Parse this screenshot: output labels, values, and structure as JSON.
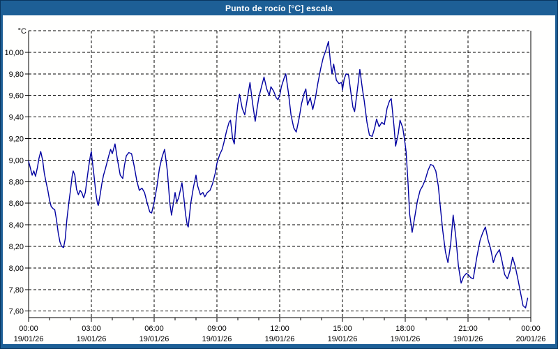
{
  "window": {
    "title": "Punto de rocío [°C] escala"
  },
  "colors": {
    "titlebar": "#1d5f96",
    "frame_outer": "#09365f",
    "plot_background": "#fffffe",
    "line": "#0000a0",
    "grid": "#000000"
  },
  "chart_data": {
    "type": "line",
    "title": "Punto de rocío [°C] escala",
    "xlabel": "",
    "ylabel": "°C",
    "legend": "none",
    "grid": "dashed",
    "ylim": [
      7.54,
      10.2
    ],
    "xlim_hours": [
      0,
      24
    ],
    "y_axis": {
      "unit": "°C",
      "ticks": [
        {
          "value": 10.0,
          "label": "10,00"
        },
        {
          "value": 9.8,
          "label": "9,80"
        },
        {
          "value": 9.6,
          "label": "9,60"
        },
        {
          "value": 9.4,
          "label": "9,40"
        },
        {
          "value": 9.2,
          "label": "9,20"
        },
        {
          "value": 9.0,
          "label": "9,00"
        },
        {
          "value": 8.8,
          "label": "8,80"
        },
        {
          "value": 8.6,
          "label": "8,60"
        },
        {
          "value": 8.4,
          "label": "8,40"
        },
        {
          "value": 8.2,
          "label": "8,20"
        },
        {
          "value": 8.0,
          "label": "8,00"
        },
        {
          "value": 7.8,
          "label": "7,80"
        },
        {
          "value": 7.6,
          "label": "7,60"
        }
      ]
    },
    "x_axis": {
      "minor_step_hours": 1,
      "ticks": [
        {
          "hour": 0,
          "time": "00:00",
          "date": "19/01/26"
        },
        {
          "hour": 3,
          "time": "03:00",
          "date": "19/01/26"
        },
        {
          "hour": 6,
          "time": "06:00",
          "date": "19/01/26"
        },
        {
          "hour": 9,
          "time": "09:00",
          "date": "19/01/26"
        },
        {
          "hour": 12,
          "time": "12:00",
          "date": "19/01/26"
        },
        {
          "hour": 15,
          "time": "15:00",
          "date": "19/01/26"
        },
        {
          "hour": 18,
          "time": "18:00",
          "date": "19/01/26"
        },
        {
          "hour": 21,
          "time": "21:00",
          "date": "19/01/26"
        },
        {
          "hour": 24,
          "time": "00:00",
          "date": "20/01/26"
        }
      ]
    },
    "series": [
      {
        "name": "Punto de rocío",
        "color": "#0000a0",
        "points": [
          [
            0.0,
            8.99
          ],
          [
            0.08,
            8.93
          ],
          [
            0.17,
            8.86
          ],
          [
            0.25,
            8.9
          ],
          [
            0.33,
            8.85
          ],
          [
            0.42,
            8.93
          ],
          [
            0.5,
            9.02
          ],
          [
            0.58,
            9.08
          ],
          [
            0.67,
            9.0
          ],
          [
            0.75,
            8.88
          ],
          [
            0.83,
            8.8
          ],
          [
            0.92,
            8.72
          ],
          [
            1.0,
            8.63
          ],
          [
            1.08,
            8.57
          ],
          [
            1.17,
            8.55
          ],
          [
            1.25,
            8.54
          ],
          [
            1.33,
            8.45
          ],
          [
            1.42,
            8.32
          ],
          [
            1.5,
            8.24
          ],
          [
            1.58,
            8.2
          ],
          [
            1.67,
            8.19
          ],
          [
            1.75,
            8.27
          ],
          [
            1.83,
            8.45
          ],
          [
            1.92,
            8.6
          ],
          [
            2.0,
            8.72
          ],
          [
            2.08,
            8.85
          ],
          [
            2.13,
            8.9
          ],
          [
            2.21,
            8.86
          ],
          [
            2.29,
            8.73
          ],
          [
            2.38,
            8.68
          ],
          [
            2.46,
            8.72
          ],
          [
            2.54,
            8.7
          ],
          [
            2.63,
            8.65
          ],
          [
            2.71,
            8.7
          ],
          [
            2.79,
            8.82
          ],
          [
            2.88,
            8.95
          ],
          [
            2.96,
            9.05
          ],
          [
            3.0,
            9.08
          ],
          [
            3.04,
            9.0
          ],
          [
            3.13,
            8.85
          ],
          [
            3.21,
            8.7
          ],
          [
            3.29,
            8.6
          ],
          [
            3.33,
            8.58
          ],
          [
            3.42,
            8.68
          ],
          [
            3.5,
            8.78
          ],
          [
            3.58,
            8.86
          ],
          [
            3.67,
            8.92
          ],
          [
            3.75,
            8.98
          ],
          [
            3.83,
            9.04
          ],
          [
            3.92,
            9.1
          ],
          [
            4.0,
            9.06
          ],
          [
            4.13,
            9.15
          ],
          [
            4.25,
            9.0
          ],
          [
            4.38,
            8.86
          ],
          [
            4.5,
            8.83
          ],
          [
            4.58,
            8.95
          ],
          [
            4.67,
            9.04
          ],
          [
            4.79,
            9.07
          ],
          [
            4.92,
            9.06
          ],
          [
            5.04,
            8.95
          ],
          [
            5.17,
            8.81
          ],
          [
            5.29,
            8.72
          ],
          [
            5.42,
            8.74
          ],
          [
            5.54,
            8.7
          ],
          [
            5.67,
            8.6
          ],
          [
            5.79,
            8.52
          ],
          [
            5.88,
            8.51
          ],
          [
            6.0,
            8.61
          ],
          [
            6.13,
            8.75
          ],
          [
            6.25,
            8.92
          ],
          [
            6.38,
            9.03
          ],
          [
            6.5,
            9.1
          ],
          [
            6.63,
            8.9
          ],
          [
            6.75,
            8.6
          ],
          [
            6.83,
            8.49
          ],
          [
            6.92,
            8.6
          ],
          [
            7.0,
            8.7
          ],
          [
            7.08,
            8.61
          ],
          [
            7.17,
            8.65
          ],
          [
            7.25,
            8.72
          ],
          [
            7.33,
            8.79
          ],
          [
            7.42,
            8.65
          ],
          [
            7.5,
            8.5
          ],
          [
            7.58,
            8.4
          ],
          [
            7.63,
            8.38
          ],
          [
            7.75,
            8.6
          ],
          [
            7.88,
            8.75
          ],
          [
            8.0,
            8.86
          ],
          [
            8.08,
            8.76
          ],
          [
            8.21,
            8.68
          ],
          [
            8.33,
            8.7
          ],
          [
            8.42,
            8.66
          ],
          [
            8.54,
            8.7
          ],
          [
            8.67,
            8.72
          ],
          [
            8.79,
            8.78
          ],
          [
            8.92,
            8.88
          ],
          [
            9.0,
            8.97
          ],
          [
            9.13,
            9.05
          ],
          [
            9.25,
            9.1
          ],
          [
            9.33,
            9.16
          ],
          [
            9.46,
            9.27
          ],
          [
            9.58,
            9.35
          ],
          [
            9.65,
            9.37
          ],
          [
            9.75,
            9.2
          ],
          [
            9.83,
            9.15
          ],
          [
            9.92,
            9.38
          ],
          [
            10.0,
            9.52
          ],
          [
            10.08,
            9.61
          ],
          [
            10.21,
            9.48
          ],
          [
            10.33,
            9.42
          ],
          [
            10.46,
            9.58
          ],
          [
            10.58,
            9.72
          ],
          [
            10.71,
            9.52
          ],
          [
            10.83,
            9.36
          ],
          [
            10.92,
            9.48
          ],
          [
            11.0,
            9.58
          ],
          [
            11.13,
            9.68
          ],
          [
            11.25,
            9.77
          ],
          [
            11.38,
            9.66
          ],
          [
            11.5,
            9.6
          ],
          [
            11.58,
            9.68
          ],
          [
            11.71,
            9.64
          ],
          [
            11.83,
            9.58
          ],
          [
            11.92,
            9.56
          ],
          [
            12.0,
            9.6
          ],
          [
            12.08,
            9.68
          ],
          [
            12.21,
            9.76
          ],
          [
            12.29,
            9.8
          ],
          [
            12.42,
            9.62
          ],
          [
            12.54,
            9.42
          ],
          [
            12.67,
            9.3
          ],
          [
            12.79,
            9.26
          ],
          [
            12.92,
            9.38
          ],
          [
            13.04,
            9.52
          ],
          [
            13.17,
            9.62
          ],
          [
            13.25,
            9.66
          ],
          [
            13.33,
            9.51
          ],
          [
            13.46,
            9.58
          ],
          [
            13.58,
            9.47
          ],
          [
            13.71,
            9.58
          ],
          [
            13.83,
            9.72
          ],
          [
            13.96,
            9.85
          ],
          [
            14.08,
            9.95
          ],
          [
            14.21,
            10.02
          ],
          [
            14.33,
            10.1
          ],
          [
            14.42,
            9.92
          ],
          [
            14.5,
            9.8
          ],
          [
            14.58,
            9.89
          ],
          [
            14.71,
            9.74
          ],
          [
            14.83,
            9.71
          ],
          [
            14.96,
            9.72
          ],
          [
            15.0,
            9.65
          ],
          [
            15.08,
            9.75
          ],
          [
            15.17,
            9.8
          ],
          [
            15.29,
            9.79
          ],
          [
            15.42,
            9.6
          ],
          [
            15.5,
            9.49
          ],
          [
            15.58,
            9.45
          ],
          [
            15.71,
            9.65
          ],
          [
            15.83,
            9.84
          ],
          [
            15.96,
            9.65
          ],
          [
            16.04,
            9.55
          ],
          [
            16.17,
            9.35
          ],
          [
            16.29,
            9.23
          ],
          [
            16.42,
            9.22
          ],
          [
            16.54,
            9.3
          ],
          [
            16.63,
            9.38
          ],
          [
            16.75,
            9.31
          ],
          [
            16.88,
            9.35
          ],
          [
            17.0,
            9.33
          ],
          [
            17.13,
            9.48
          ],
          [
            17.25,
            9.55
          ],
          [
            17.33,
            9.57
          ],
          [
            17.46,
            9.32
          ],
          [
            17.54,
            9.13
          ],
          [
            17.67,
            9.25
          ],
          [
            17.75,
            9.37
          ],
          [
            17.88,
            9.3
          ],
          [
            17.96,
            9.2
          ],
          [
            18.04,
            9.08
          ],
          [
            18.13,
            8.8
          ],
          [
            18.21,
            8.5
          ],
          [
            18.33,
            8.33
          ],
          [
            18.46,
            8.48
          ],
          [
            18.58,
            8.62
          ],
          [
            18.71,
            8.72
          ],
          [
            18.83,
            8.76
          ],
          [
            18.96,
            8.82
          ],
          [
            19.08,
            8.9
          ],
          [
            19.21,
            8.96
          ],
          [
            19.33,
            8.95
          ],
          [
            19.46,
            8.9
          ],
          [
            19.58,
            8.76
          ],
          [
            19.67,
            8.58
          ],
          [
            19.79,
            8.35
          ],
          [
            19.92,
            8.15
          ],
          [
            20.04,
            8.05
          ],
          [
            20.17,
            8.22
          ],
          [
            20.29,
            8.49
          ],
          [
            20.42,
            8.28
          ],
          [
            20.54,
            8.02
          ],
          [
            20.67,
            7.86
          ],
          [
            20.79,
            7.92
          ],
          [
            20.92,
            7.95
          ],
          [
            21.0,
            7.94
          ],
          [
            21.13,
            7.91
          ],
          [
            21.25,
            7.9
          ],
          [
            21.42,
            8.1
          ],
          [
            21.58,
            8.26
          ],
          [
            21.71,
            8.33
          ],
          [
            21.83,
            8.38
          ],
          [
            21.96,
            8.26
          ],
          [
            22.08,
            8.18
          ],
          [
            22.21,
            8.05
          ],
          [
            22.33,
            8.12
          ],
          [
            22.5,
            8.17
          ],
          [
            22.63,
            8.06
          ],
          [
            22.75,
            7.94
          ],
          [
            22.88,
            7.9
          ],
          [
            23.0,
            7.97
          ],
          [
            23.13,
            8.1
          ],
          [
            23.25,
            8.02
          ],
          [
            23.38,
            7.9
          ],
          [
            23.5,
            7.78
          ],
          [
            23.63,
            7.65
          ],
          [
            23.75,
            7.63
          ],
          [
            23.85,
            7.72
          ]
        ]
      }
    ]
  }
}
